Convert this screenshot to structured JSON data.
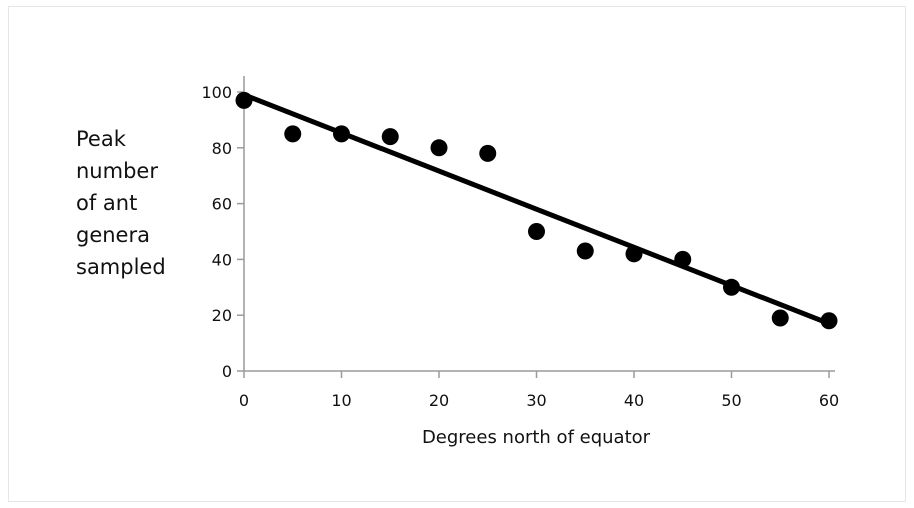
{
  "chart_data": {
    "type": "scatter",
    "title": "",
    "xlabel": "Degrees north of equator",
    "ylabel": "Peak\nnumber\nof ant\ngenera\nsampled",
    "xlim": [
      0,
      60
    ],
    "ylim": [
      0,
      100
    ],
    "xticks": [
      "0",
      "10",
      "20",
      "30",
      "40",
      "50",
      "60"
    ],
    "yticks": [
      "0",
      "20",
      "40",
      "60",
      "80",
      "100"
    ],
    "grid": false,
    "legend": "none",
    "series": [
      {
        "x": [
          0,
          5,
          10,
          15,
          20,
          25,
          30,
          35,
          40,
          45,
          50,
          55,
          60
        ],
        "y": [
          97,
          85,
          85,
          84,
          80,
          78,
          50,
          43,
          42,
          40,
          30,
          19,
          18
        ]
      }
    ],
    "trendline": {
      "x": [
        0,
        60
      ],
      "y": [
        99,
        17
      ]
    },
    "colors": {
      "points": "#000000",
      "trendline": "#000000",
      "axis": "#9a9a9a"
    }
  }
}
